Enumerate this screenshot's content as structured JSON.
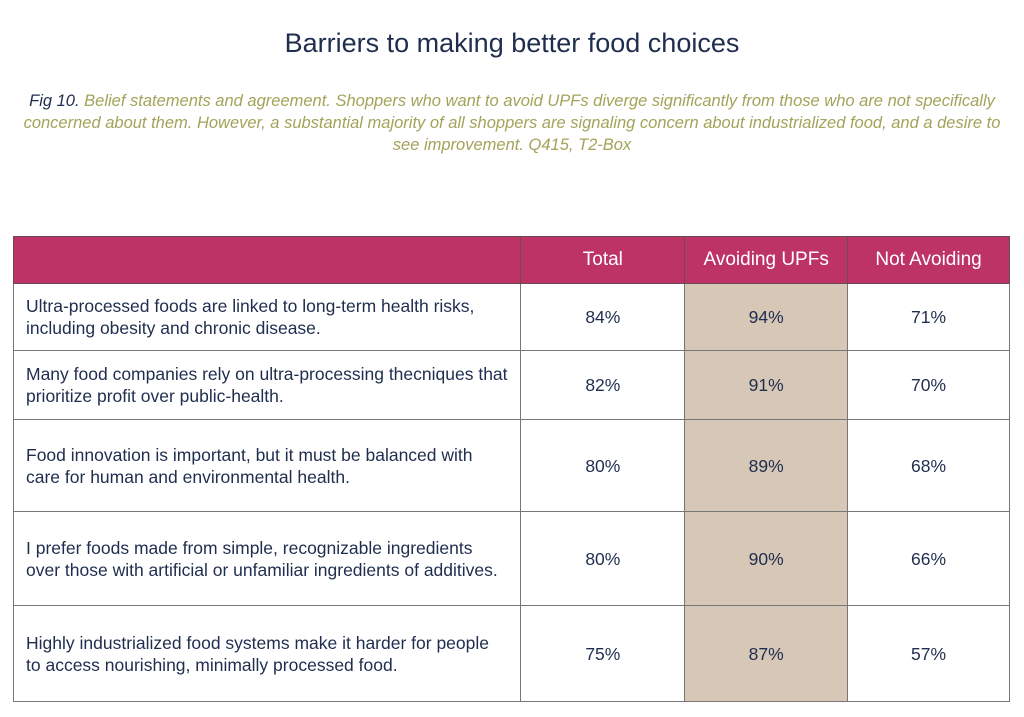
{
  "title": "Barriers to making better food choices",
  "caption": {
    "fig": "Fig 10.",
    "text": "Belief statements and agreement. Shoppers who want to avoid UPFs diverge significantly from those who are not specifically concerned about them. However, a substantial majority of all shoppers are signaling concern about industrialized food, and a desire to see improvement. Q415, T2-Box"
  },
  "colors": {
    "header": "#be3366",
    "highlight": "#d7c7b6",
    "caption": "#a3a35a",
    "text": "#1f2d4e"
  },
  "table": {
    "headers": [
      "",
      "Total",
      "Avoiding UPFs",
      "Not Avoiding"
    ],
    "rows": [
      {
        "statement": "Ultra-processed foods are linked to long-term health risks, including obesity and chronic disease.",
        "total": "84%",
        "avoiding": "94%",
        "not_avoiding": "71%"
      },
      {
        "statement": "Many food companies rely on ultra-processing thecniques that prioritize profit over public-health.",
        "total": "82%",
        "avoiding": "91%",
        "not_avoiding": "70%"
      },
      {
        "statement": "Food innovation is important, but it must be balanced with care for human and environmental health.",
        "total": "80%",
        "avoiding": "89%",
        "not_avoiding": "68%"
      },
      {
        "statement": "I prefer foods made from simple, recognizable ingredients over those with artificial or unfamiliar ingredients of additives.",
        "total": "80%",
        "avoiding": "90%",
        "not_avoiding": "66%"
      },
      {
        "statement": "Highly industrialized food systems make it harder for people to access nourishing, minimally processed food.",
        "total": "75%",
        "avoiding": "87%",
        "not_avoiding": "57%"
      }
    ]
  }
}
